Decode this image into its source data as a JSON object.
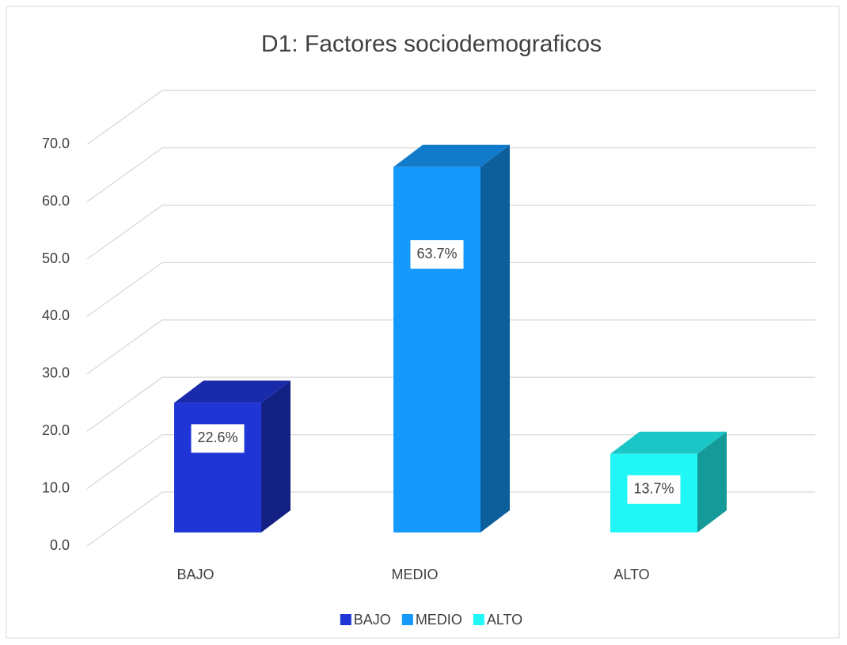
{
  "chart_data": {
    "type": "bar3d",
    "title": "D1: Factores sociodemograficos",
    "categories": [
      "BAJO",
      "MEDIO",
      "ALTO"
    ],
    "values": [
      22.6,
      63.7,
      13.7
    ],
    "value_labels": [
      "22.6%",
      "63.7%",
      "13.7%"
    ],
    "colors": [
      "#1f35d6",
      "#1599fc",
      "#22f7f7"
    ],
    "ylim": [
      0,
      70
    ],
    "yticks": [
      {
        "value": 0,
        "label": "0.0"
      },
      {
        "value": 10,
        "label": "10.0"
      },
      {
        "value": 20,
        "label": "20.0"
      },
      {
        "value": 30,
        "label": "30.0"
      },
      {
        "value": 40,
        "label": "40.0"
      },
      {
        "value": 50,
        "label": "50.0"
      },
      {
        "value": 60,
        "label": "60.0"
      },
      {
        "value": 70,
        "label": "70.0"
      }
    ],
    "grid": true,
    "legend": "bottom"
  }
}
